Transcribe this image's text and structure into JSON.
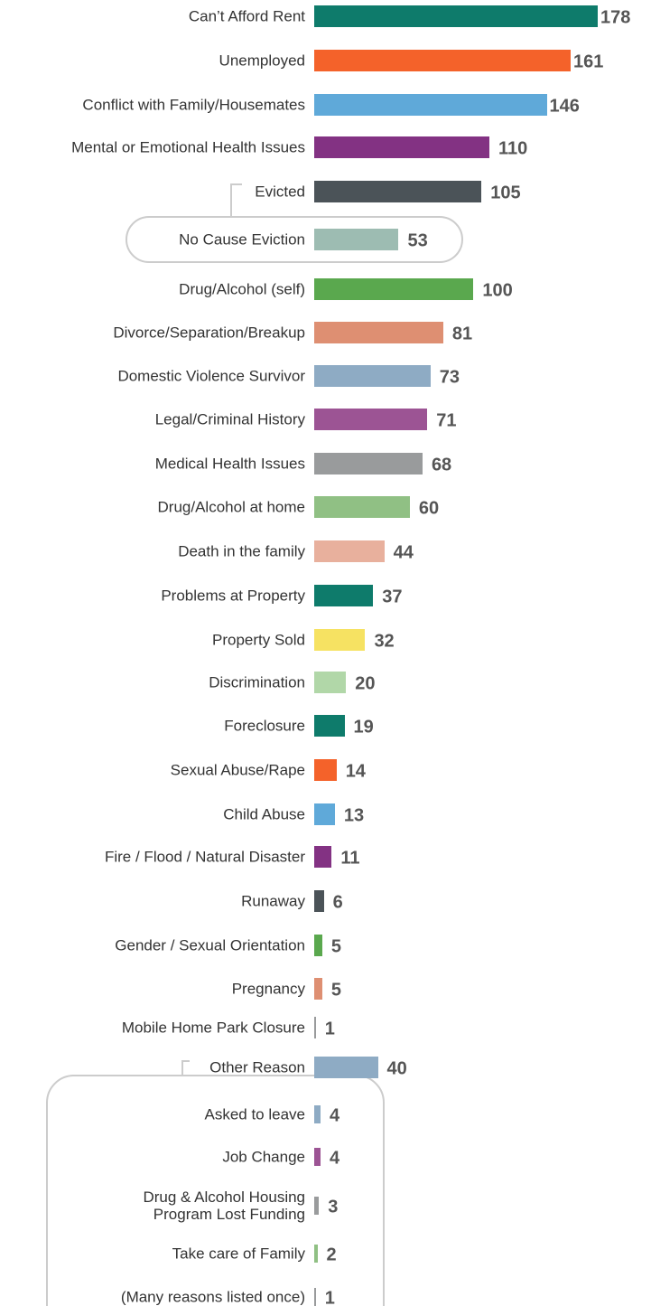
{
  "chart_data": {
    "type": "bar",
    "orientation": "horizontal",
    "categories": [
      "Can’t Afford Rent",
      "Unemployed",
      "Conflict with Family/Housemates",
      "Mental or Emotional Health Issues",
      "Evicted",
      "No Cause Eviction",
      "Drug/Alcohol (self)",
      "Divorce/Separation/Breakup",
      "Domestic Violence Survivor",
      "Legal/Criminal History",
      "Medical Health Issues",
      "Drug/Alcohol at home",
      "Death in the family",
      "Problems at Property",
      "Property Sold",
      "Discrimination",
      "Foreclosure",
      "Sexual Abuse/Rape",
      "Child Abuse",
      "Fire / Flood / Natural Disaster",
      "Runaway",
      "Gender / Sexual Orientation",
      "Pregnancy",
      "Mobile Home Park Closure",
      "Other Reason",
      "Asked to leave",
      "Job Change",
      "Drug & Alcohol Housing Program Lost Funding",
      "Take care of Family",
      "(Many reasons listed once)"
    ],
    "values": [
      178,
      161,
      146,
      110,
      105,
      53,
      100,
      81,
      73,
      71,
      68,
      60,
      44,
      37,
      32,
      20,
      19,
      14,
      13,
      11,
      6,
      5,
      5,
      1,
      40,
      4,
      4,
      3,
      2,
      1
    ],
    "colors": [
      "#0e7b6b",
      "#f4622a",
      "#5fa9d9",
      "#833283",
      "#4b5358",
      "#9dbcb2",
      "#5aa84e",
      "#de8f72",
      "#8eabc4",
      "#9c5494",
      "#999b9c",
      "#90c084",
      "#e8b09d",
      "#0e7b6b",
      "#f6e262",
      "#b1d7a8",
      "#0e7b6b",
      "#f4622a",
      "#5fa9d9",
      "#833283",
      "#4b5358",
      "#5aa84e",
      "#de8f72",
      "#999b9c",
      "#8eabc4",
      "#8eabc4",
      "#9c5494",
      "#999b9c",
      "#90c084",
      "#999b9c"
    ]
  }
}
